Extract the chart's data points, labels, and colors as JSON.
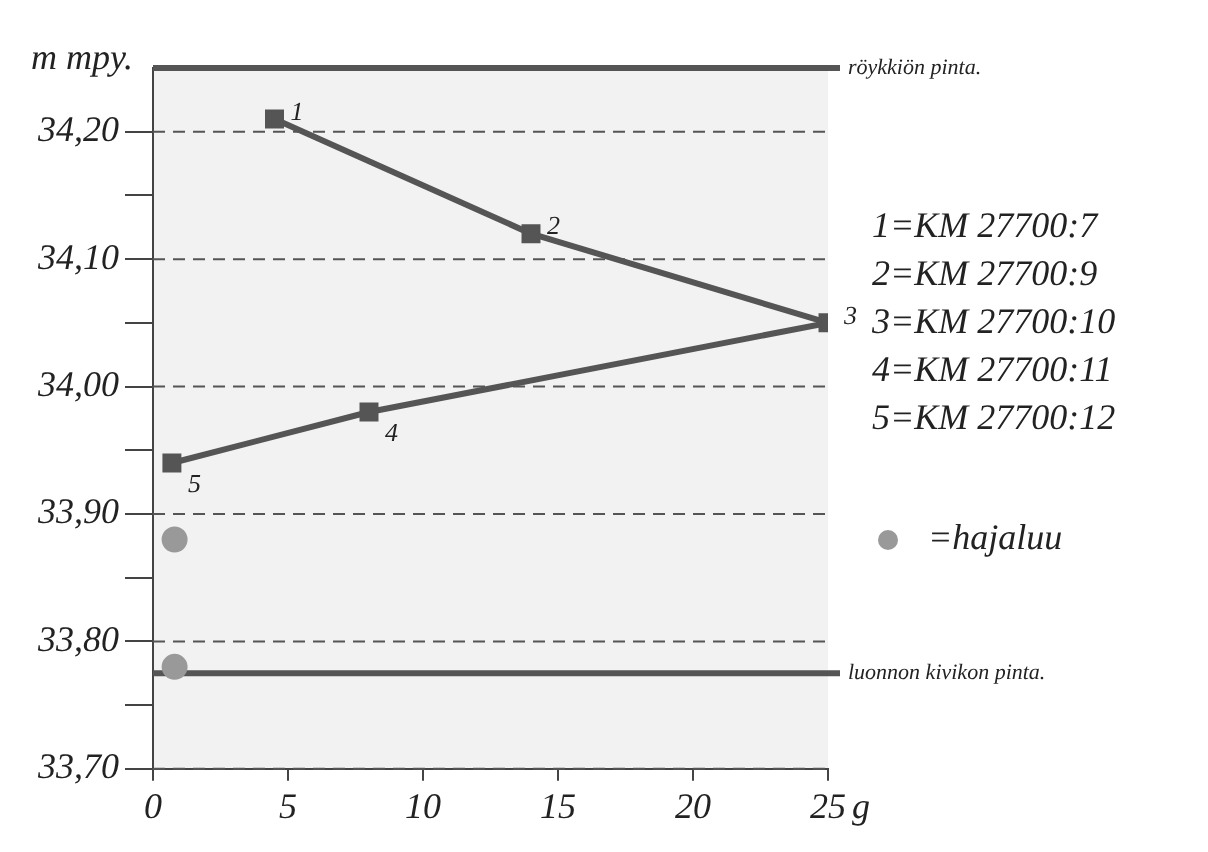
{
  "chart_data": {
    "type": "line",
    "xlabel": "g",
    "ylabel": "m mpy.",
    "xlim": [
      0,
      25
    ],
    "xticks": [
      0,
      5,
      10,
      15,
      20,
      25
    ],
    "ylim": [
      33.7,
      34.25
    ],
    "yticks": [
      {
        "value": 33.7,
        "label": "33,70"
      },
      {
        "value": 33.75,
        "label": null
      },
      {
        "value": 33.8,
        "label": "33,80"
      },
      {
        "value": 33.85,
        "label": null
      },
      {
        "value": 33.9,
        "label": "33,90"
      },
      {
        "value": 33.95,
        "label": null
      },
      {
        "value": 34.0,
        "label": "34,00"
      },
      {
        "value": 34.05,
        "label": null
      },
      {
        "value": 34.1,
        "label": "34,10"
      },
      {
        "value": 34.15,
        "label": null
      },
      {
        "value": 34.2,
        "label": "34,20"
      }
    ],
    "grid": "y",
    "line_style": "solid",
    "legend": "right",
    "series": [
      {
        "color": "#555555",
        "marker": "square",
        "x": [
          4.5,
          14,
          25,
          8,
          0.7
        ],
        "values": [
          34.21,
          34.12,
          34.05,
          33.98,
          33.94
        ]
      },
      {
        "type": "scatter",
        "name": "=hajaluu",
        "color": "#999999",
        "marker": "circle",
        "x": [
          0.8,
          0.8
        ],
        "values": [
          33.88,
          33.78
        ]
      }
    ],
    "ref_lines": [
      {
        "axis": "y",
        "value": 34.25,
        "label": "röykkiön pinta.",
        "color": "#555555"
      },
      {
        "axis": "y",
        "value": 33.775,
        "label": "luonnon kivikon pinta.",
        "color": "#555555"
      }
    ],
    "annotations": [
      {
        "text": "1",
        "x": 4.5,
        "y": 34.21
      },
      {
        "text": "2",
        "x": 14,
        "y": 34.12
      },
      {
        "text": "3",
        "x": 25,
        "y": 34.05
      },
      {
        "text": "4",
        "x": 8,
        "y": 33.98
      },
      {
        "text": "5",
        "x": 0.7,
        "y": 33.94
      },
      "1=KM 27700:7",
      "2=KM 27700:9",
      "3=KM 27700:10",
      "4=KM 27700:11",
      "5=KM 27700:12"
    ]
  }
}
